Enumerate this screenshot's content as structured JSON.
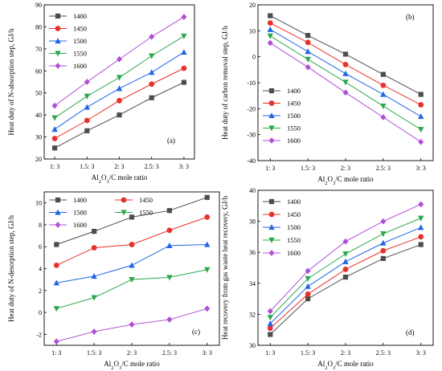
{
  "chart_data": [
    {
      "type": "line",
      "panel_label": "(a)",
      "categories": [
        "1: 3",
        "1.5: 3",
        "2: 3",
        "2.5: 3",
        "3: 3"
      ],
      "xlabel_parts": [
        "Al",
        "2",
        "O",
        "3",
        "/C mole ratio"
      ],
      "ylabel": "Heat duty of N-absorption step, GJ/h",
      "ylim": [
        20,
        90
      ],
      "yticks": [
        20,
        30,
        40,
        50,
        60,
        70,
        80,
        90
      ],
      "legend_position": "top-left",
      "series": [
        {
          "name": "1400",
          "color": "#4d4d4d",
          "marker": "square",
          "values": [
            25.0,
            32.8,
            40.0,
            47.8,
            54.8
          ]
        },
        {
          "name": "1450",
          "color": "#e8312a",
          "marker": "circle",
          "values": [
            29.3,
            37.5,
            46.5,
            54.0,
            61.2
          ]
        },
        {
          "name": "1500",
          "color": "#1f66e5",
          "marker": "triangle-up",
          "values": [
            33.5,
            43.5,
            52.0,
            59.3,
            68.5
          ]
        },
        {
          "name": "1550",
          "color": "#2ba84a",
          "marker": "triangle-down",
          "values": [
            38.7,
            48.5,
            57.0,
            66.8,
            75.8
          ]
        },
        {
          "name": "1600",
          "color": "#b04fd6",
          "marker": "diamond",
          "values": [
            44.2,
            55.0,
            65.3,
            75.5,
            84.5
          ]
        }
      ]
    },
    {
      "type": "line",
      "panel_label": "(b)",
      "categories": [
        "1: 3",
        "1.5: 3",
        "2: 3",
        "2.5: 3",
        "3: 3"
      ],
      "xlabel_parts": [
        "Al",
        "2",
        "O",
        "3",
        "/C mole ratio"
      ],
      "ylabel": "Heat duty of carbon removal step, GJ/h",
      "ylim": [
        -40,
        20
      ],
      "yticks": [
        -40,
        -30,
        -20,
        -10,
        0,
        10,
        20
      ],
      "legend_position": "bottom-left",
      "series": [
        {
          "name": "1400",
          "color": "#4d4d4d",
          "marker": "square",
          "values": [
            15.8,
            8.2,
            1.0,
            -6.8,
            -14.5
          ]
        },
        {
          "name": "1450",
          "color": "#e8312a",
          "marker": "circle",
          "values": [
            13.0,
            5.5,
            -3.0,
            -11.0,
            -18.5
          ]
        },
        {
          "name": "1500",
          "color": "#1f66e5",
          "marker": "triangle-up",
          "values": [
            10.5,
            2.0,
            -6.5,
            -14.5,
            -23.0
          ]
        },
        {
          "name": "1550",
          "color": "#2ba84a",
          "marker": "triangle-down",
          "values": [
            8.0,
            -1.0,
            -9.8,
            -19.0,
            -28.0
          ]
        },
        {
          "name": "1600",
          "color": "#b04fd6",
          "marker": "diamond",
          "values": [
            5.3,
            -4.0,
            -13.8,
            -23.3,
            -32.8
          ]
        }
      ]
    },
    {
      "type": "line",
      "panel_label": "(c)",
      "categories": [
        "1: 3",
        "1.5: 3",
        "2: 3",
        "2.5: 3",
        "3: 3"
      ],
      "xlabel_parts": [
        "Al",
        "2",
        "O",
        "3",
        "/C mole ratio"
      ],
      "ylabel": "Heat duty of N-desorption step, GJ/h",
      "ylim": [
        -3,
        11
      ],
      "yticks": [
        -2,
        0,
        2,
        4,
        6,
        8,
        10
      ],
      "legend_position": "top-left",
      "series": [
        {
          "name": "1400",
          "color": "#4d4d4d",
          "marker": "square",
          "values": [
            6.2,
            7.4,
            8.7,
            9.3,
            10.5
          ]
        },
        {
          "name": "1450",
          "color": "#e8312a",
          "marker": "circle",
          "values": [
            4.3,
            5.9,
            6.2,
            7.5,
            8.7
          ]
        },
        {
          "name": "1500",
          "color": "#1f66e5",
          "marker": "triangle-up",
          "values": [
            2.7,
            3.3,
            4.3,
            6.1,
            6.2
          ]
        },
        {
          "name": "1550",
          "color": "#2ba84a",
          "marker": "triangle-down",
          "values": [
            0.35,
            1.35,
            3.0,
            3.2,
            3.9
          ]
        },
        {
          "name": "1600",
          "color": "#b04fd6",
          "marker": "diamond",
          "values": [
            -2.65,
            -1.75,
            -1.1,
            -0.65,
            0.35
          ]
        }
      ]
    },
    {
      "type": "line",
      "panel_label": "(d)",
      "categories": [
        "1: 3",
        "1.5: 3",
        "2: 3",
        "2.5: 3",
        "3: 3"
      ],
      "xlabel_parts": [
        "Al",
        "2",
        "O",
        "3",
        "/C mole ratio"
      ],
      "ylabel": "Heat recovery from gas waste heat recovery, GJ/h",
      "ylim": [
        30,
        40
      ],
      "yticks": [
        30,
        32,
        34,
        36,
        38,
        40
      ],
      "legend_position": "top-left",
      "series": [
        {
          "name": "1400",
          "color": "#4d4d4d",
          "marker": "square",
          "values": [
            30.7,
            33.0,
            34.4,
            35.6,
            36.5
          ]
        },
        {
          "name": "1450",
          "color": "#e8312a",
          "marker": "circle",
          "values": [
            31.1,
            33.3,
            34.9,
            36.1,
            37.0
          ]
        },
        {
          "name": "1500",
          "color": "#1f66e5",
          "marker": "triangle-up",
          "values": [
            31.4,
            33.8,
            35.4,
            36.6,
            37.6
          ]
        },
        {
          "name": "1550",
          "color": "#2ba84a",
          "marker": "triangle-down",
          "values": [
            31.8,
            34.3,
            35.9,
            37.2,
            38.2
          ]
        },
        {
          "name": "1600",
          "color": "#b04fd6",
          "marker": "diamond",
          "values": [
            32.2,
            34.8,
            36.7,
            38.0,
            39.1
          ]
        }
      ]
    }
  ]
}
